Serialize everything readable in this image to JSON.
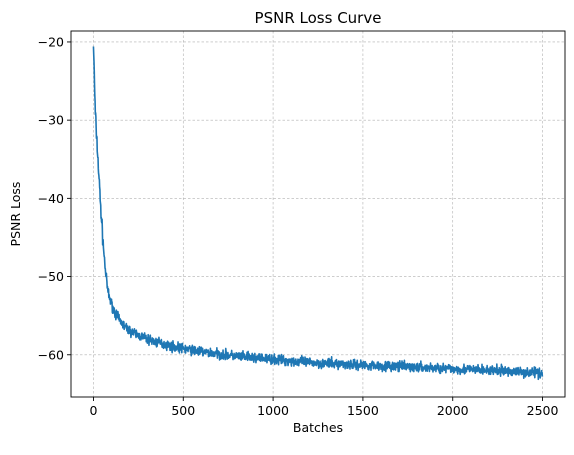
{
  "chart_data": {
    "type": "line",
    "title": "PSNR Loss Curve",
    "xlabel": "Batches",
    "ylabel": "PSNR Loss",
    "xlim": [
      -125,
      2625
    ],
    "ylim": [
      -65.4,
      -18.6
    ],
    "xticks": [
      0,
      500,
      1000,
      1500,
      2000,
      2500
    ],
    "yticks": [
      -60,
      -50,
      -40,
      -30,
      -20
    ],
    "grid": true,
    "series": [
      {
        "color": "#1f77b4",
        "x": [
          0,
          5,
          10,
          20,
          30,
          40,
          50,
          60,
          70,
          80,
          90,
          100,
          120,
          140,
          160,
          180,
          200,
          250,
          300,
          350,
          400,
          450,
          500,
          600,
          700,
          800,
          900,
          1000,
          1100,
          1200,
          1300,
          1400,
          1500,
          1600,
          1700,
          1800,
          1900,
          2000,
          2100,
          2200,
          2300,
          2400,
          2500
        ],
        "y": [
          -20.3,
          -24.5,
          -29,
          -33,
          -37,
          -41,
          -44.5,
          -47.5,
          -50,
          -51.8,
          -52.8,
          -53.5,
          -54.6,
          -55.4,
          -56.0,
          -56.5,
          -56.9,
          -57.5,
          -58.0,
          -58.4,
          -58.7,
          -59.0,
          -59.2,
          -59.6,
          -59.9,
          -60.2,
          -60.4,
          -60.6,
          -60.8,
          -61.0,
          -61.1,
          -61.2,
          -61.3,
          -61.4,
          -61.5,
          -61.6,
          -61.7,
          -61.8,
          -61.9,
          -62.0,
          -62.1,
          -62.2,
          -62.3
        ]
      }
    ]
  }
}
